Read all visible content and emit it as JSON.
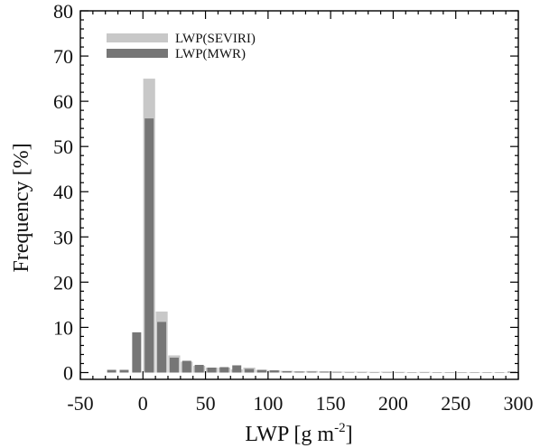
{
  "chart_data": {
    "type": "bar",
    "title": "",
    "xlabel": "LWP [g m",
    "xlabel_sup": "-2",
    "xlabel_end": "]",
    "ylabel": "Frequency [%]",
    "xlim": [
      -50,
      300
    ],
    "ylim": [
      -1.5,
      80
    ],
    "xticks": [
      -50,
      0,
      50,
      100,
      150,
      200,
      250,
      300
    ],
    "yticks": [
      0,
      10,
      20,
      30,
      40,
      50,
      60,
      70,
      80
    ],
    "legend_position": "top-left",
    "grid": false,
    "x": [
      -25,
      -15,
      -5,
      5,
      15,
      25,
      35,
      45,
      55,
      65,
      75,
      85,
      95,
      105,
      115,
      125,
      135,
      145,
      155,
      165,
      175,
      185,
      195,
      205,
      215,
      225,
      235,
      245,
      255,
      265,
      275,
      285,
      295
    ],
    "bar_width": 10,
    "series": [
      {
        "name": "LWP(SEVIRI)",
        "color": "#c8c8c8",
        "values": [
          0,
          0,
          0,
          65,
          13.5,
          3.8,
          2.4,
          1.5,
          1.1,
          1.1,
          0.7,
          1.1,
          0.6,
          0.5,
          0.4,
          0.3,
          0.35,
          0.25,
          0.2,
          0.2,
          0.2,
          0.15,
          0.2,
          0.15,
          0.1,
          0.15,
          0.1,
          0.1,
          0.1,
          0.1,
          0.1,
          0.1,
          0.1
        ]
      },
      {
        "name": "LWP(MWR)",
        "color": "#767676",
        "values": [
          0.6,
          0.6,
          8.9,
          56.2,
          11.2,
          3.3,
          2.6,
          1.7,
          1.1,
          1.2,
          1.6,
          0.8,
          0.6,
          0.5,
          0.3,
          0.2,
          0.2,
          0.2,
          0.15,
          0.1,
          0.1,
          0.1,
          0.1,
          0.1,
          0.1,
          0.1,
          0.1,
          0.1,
          0.1,
          0.1,
          0.1,
          0.1,
          0.2
        ]
      }
    ]
  }
}
